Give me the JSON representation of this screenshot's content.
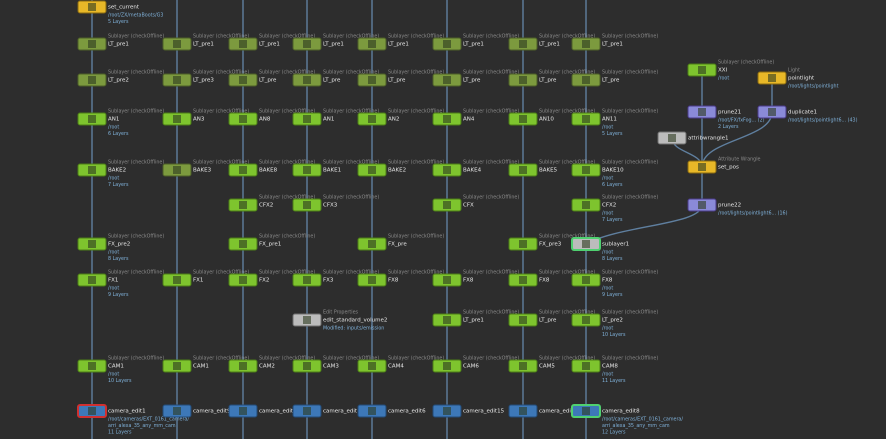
{
  "nodes": [
    {
      "label": "set_current",
      "info": [
        "/root/ZX/metaBoots/G3",
        "5 Layers"
      ]
    },
    {
      "label": "LT_pre1",
      "caption": "Sublayer (checkOffline)"
    },
    {
      "label": "LT_pre2",
      "caption": "Sublayer (checkOffline)"
    },
    {
      "label": "AN1",
      "caption": "Sublayer (checkOffline)",
      "info": [
        "/root",
        "6 Layers"
      ]
    },
    {
      "label": "BAKE2",
      "caption": "Sublayer (checkOffline)",
      "info": [
        "/root",
        "7 Layers"
      ]
    },
    {
      "label": "FX_pre2",
      "caption": "Sublayer (checkOffline)",
      "info": [
        "/root",
        "8 Layers"
      ]
    },
    {
      "label": "FX1",
      "caption": "Sublayer (checkOffline)",
      "info": [
        "/root",
        "9 Layers"
      ]
    },
    {
      "label": "CAM1",
      "caption": "Sublayer (checkOffline)",
      "info": [
        "/root",
        "10 Layers"
      ]
    },
    {
      "label": "camera_edit1",
      "info": [
        "/root/cameras/EXT_0161_camera/",
        "arri_alexa_35_any_mm_cam",
        "11 Layers"
      ]
    },
    {
      "label": "LT_pre1",
      "caption": "Sublayer (checkOffline)"
    },
    {
      "label": "LT_pre3",
      "caption": "Sublayer (checkOffline)"
    },
    {
      "label": "AN3",
      "caption": "Sublayer (checkOffline)"
    },
    {
      "label": "BAKE3",
      "caption": "Sublayer (checkOffline)"
    },
    {
      "label": "FX1",
      "caption": "Sublayer (checkOffline)"
    },
    {
      "label": "CAM1",
      "caption": "Sublayer (checkOffline)"
    },
    {
      "label": "camera_edit9"
    },
    {
      "label": "LT_pre1",
      "caption": "Sublayer (checkOffline)"
    },
    {
      "label": "LT_pre",
      "caption": "Sublayer (checkOffline)"
    },
    {
      "label": "AN8",
      "caption": "Sublayer (checkOffline)"
    },
    {
      "label": "BAKE8",
      "caption": "Sublayer (checkOffline)"
    },
    {
      "label": "CFX2",
      "caption": "Sublayer (checkOffline)"
    },
    {
      "label": "FX_pre1",
      "caption": "Sublayer (checkOffline)"
    },
    {
      "label": "FX2",
      "caption": "Sublayer (checkOffline)"
    },
    {
      "label": "CAM2",
      "caption": "Sublayer (checkOffline)"
    },
    {
      "label": "camera_edit8"
    },
    {
      "label": "LT_pre1",
      "caption": "Sublayer (checkOffline)"
    },
    {
      "label": "LT_pre",
      "caption": "Sublayer (checkOffline)"
    },
    {
      "label": "AN1",
      "caption": "Sublayer (checkOffline)"
    },
    {
      "label": "BAKE1",
      "caption": "Sublayer (checkOffline)"
    },
    {
      "label": "CFX3",
      "caption": "Sublayer (checkOffline)"
    },
    {
      "label": "FX3",
      "caption": "Sublayer (checkOffline)"
    },
    {
      "label": "edit_standard_volume2",
      "caption": "Edit Properties",
      "info": [
        "Modified: inputs/emission"
      ]
    },
    {
      "label": "CAM3",
      "caption": "Sublayer (checkOffline)"
    },
    {
      "label": "camera_edit5"
    },
    {
      "label": "LT_pre1",
      "caption": "Sublayer (checkOffline)"
    },
    {
      "label": "LT_pre",
      "caption": "Sublayer (checkOffline)"
    },
    {
      "label": "AN2",
      "caption": "Sublayer (checkOffline)"
    },
    {
      "label": "BAKE2",
      "caption": "Sublayer (checkOffline)"
    },
    {
      "label": "FX_pre",
      "caption": "Sublayer (checkOffline)"
    },
    {
      "label": "FX8",
      "caption": "Sublayer (checkOffline)"
    },
    {
      "label": "CAM4",
      "caption": "Sublayer (checkOffline)"
    },
    {
      "label": "camera_edit6"
    },
    {
      "label": "LT_pre1",
      "caption": "Sublayer (checkOffline)"
    },
    {
      "label": "LT_pre",
      "caption": "Sublayer (checkOffline)"
    },
    {
      "label": "AN4",
      "caption": "Sublayer (checkOffline)"
    },
    {
      "label": "BAKE4",
      "caption": "Sublayer (checkOffline)"
    },
    {
      "label": "CFX",
      "caption": "Sublayer (checkOffline)"
    },
    {
      "label": "FX8",
      "caption": "Sublayer (checkOffline)"
    },
    {
      "label": "LT_pre1",
      "caption": "Sublayer (checkOffline)"
    },
    {
      "label": "CAM6",
      "caption": "Sublayer (checkOffline)"
    },
    {
      "label": "camera_edit15"
    },
    {
      "label": "LT_pre1",
      "caption": "Sublayer (checkOffline)"
    },
    {
      "label": "LT_pre",
      "caption": "Sublayer (checkOffline)"
    },
    {
      "label": "AN10",
      "caption": "Sublayer (checkOffline)"
    },
    {
      "label": "BAKE5",
      "caption": "Sublayer (checkOffline)"
    },
    {
      "label": "FX_pre3",
      "caption": "Sublayer (checkOffline)"
    },
    {
      "label": "FX8",
      "caption": "Sublayer (checkOffline)"
    },
    {
      "label": "LT_pre",
      "caption": "Sublayer (checkOffline)"
    },
    {
      "label": "CAM5",
      "caption": "Sublayer (checkOffline)"
    },
    {
      "label": "camera_edit7"
    },
    {
      "label": "LT_pre1",
      "caption": "Sublayer (checkOffline)"
    },
    {
      "label": "LT_pre",
      "caption": "Sublayer (checkOffline)"
    },
    {
      "label": "AN11",
      "caption": "Sublayer (checkOffline)",
      "info": [
        "/root",
        "5 Layers"
      ]
    },
    {
      "label": "BAKE10",
      "caption": "Sublayer (checkOffline)",
      "info": [
        "/root",
        "6 Layers"
      ]
    },
    {
      "label": "CFX2",
      "caption": "Sublayer (checkOffline)",
      "info": [
        "/root",
        "7 Layers"
      ]
    },
    {
      "label": "sublayer1",
      "info": [
        "/root",
        "8 Layers"
      ]
    },
    {
      "label": "FX8",
      "caption": "Sublayer (checkOffline)",
      "info": [
        "/root",
        "9 Layers"
      ]
    },
    {
      "label": "LT_pre2",
      "caption": "Sublayer (checkOffline)",
      "info": [
        "/root",
        "10 Layers"
      ]
    },
    {
      "label": "CAM8",
      "caption": "Sublayer (checkOffline)",
      "info": [
        "/root",
        "11 Layers"
      ]
    },
    {
      "label": "camera_edit8",
      "info": [
        "/root/cameras/EXT_0161_camera/",
        "arri_alexa_35_any_mm_cam",
        "12 Layers"
      ]
    },
    {
      "label": "XXI",
      "caption": "Sublayer (checkOffline)",
      "info": [
        "/root"
      ]
    },
    {
      "label": "pointlight",
      "caption": "Light",
      "info": [
        "/root/lights/pointlight"
      ]
    },
    {
      "label": "prune21",
      "info": [
        "/root/FX/fxFog... (2)",
        "2 Layers"
      ]
    },
    {
      "label": "duplicate1",
      "info": [
        "/root/lights/pointlight6... (43)"
      ]
    },
    {
      "label": "attribwrangle1"
    },
    {
      "label": "set_pos",
      "caption": "Attribute Wrangle"
    },
    {
      "label": "prune22",
      "info": [
        "/root/lights/pointlight6... (16)"
      ]
    }
  ]
}
